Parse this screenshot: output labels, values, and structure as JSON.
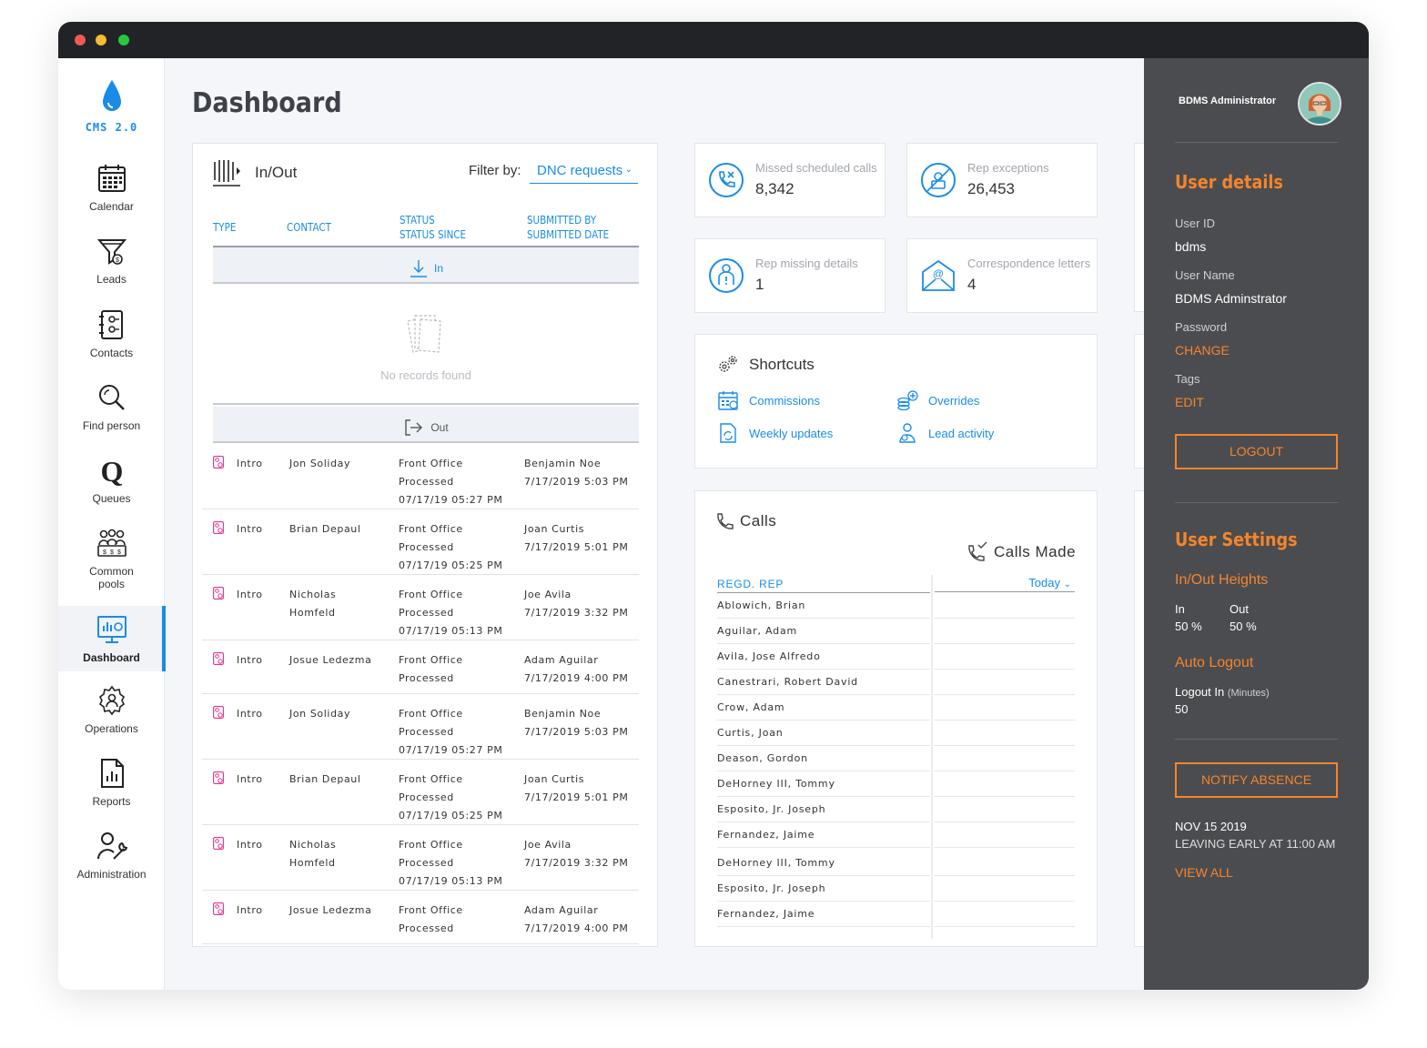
{
  "nav": {
    "logo": "CMS 2.0",
    "items": [
      {
        "label": "Calendar"
      },
      {
        "label": "Leads"
      },
      {
        "label": "Contacts"
      },
      {
        "label": "Find person"
      },
      {
        "label": "Queues"
      },
      {
        "label": "Common pools"
      },
      {
        "label": "Dashboard"
      },
      {
        "label": "Operations"
      },
      {
        "label": "Reports"
      },
      {
        "label": "Administration"
      }
    ]
  },
  "page": {
    "title": "Dashboard"
  },
  "inout": {
    "title": "In/Out",
    "filter_label": "Filter by:",
    "filter_value": "DNC requests",
    "columns": {
      "type": "TYPE",
      "contact": "CONTACT",
      "status": "STATUS",
      "status_since": "STATUS SINCE",
      "submitted_by": "SUBMITTED BY",
      "submitted_date": "SUBMITTED DATE"
    },
    "in_label": "In",
    "out_label": "Out",
    "empty_text": "No records found",
    "rows": [
      {
        "type": "Intro",
        "contact": "Jon Soliday",
        "status": "Front Office",
        "status2": "Processed",
        "since": "07/17/19 05:27 PM",
        "by": "Benjamin Noe",
        "date": "7/17/2019 5:03 PM"
      },
      {
        "type": "Intro",
        "contact": "Brian Depaul",
        "status": "Front Office",
        "status2": "Processed",
        "since": "07/17/19 05:25 PM",
        "by": "Joan Curtis",
        "date": "7/17/2019 5:01 PM"
      },
      {
        "type": "Intro",
        "contact": "Nicholas",
        "contact2": "Homfeld",
        "status": "Front Office",
        "status2": "Processed",
        "since": "07/17/19 05:13 PM",
        "by": "Joe Avila",
        "date": "7/17/2019 3:32 PM"
      },
      {
        "type": "Intro",
        "contact": "Josue Ledezma",
        "status": "Front Office",
        "status2": "Processed",
        "since": "",
        "by": "Adam Aguilar",
        "date": "7/17/2019 4:00 PM"
      },
      {
        "type": "Intro",
        "contact": "Jon Soliday",
        "status": "Front Office",
        "status2": "Processed",
        "since": "07/17/19 05:27 PM",
        "by": "Benjamin Noe",
        "date": "7/17/2019 5:03 PM"
      },
      {
        "type": "Intro",
        "contact": "Brian Depaul",
        "status": "Front Office",
        "status2": "Processed",
        "since": "07/17/19 05:25 PM",
        "by": "Joan Curtis",
        "date": "7/17/2019 5:01 PM"
      },
      {
        "type": "Intro",
        "contact": "Nicholas",
        "contact2": "Homfeld",
        "status": "Front Office",
        "status2": "Processed",
        "since": "07/17/19 05:13 PM",
        "by": "Joe Avila",
        "date": "7/17/2019 3:32 PM"
      },
      {
        "type": "Intro",
        "contact": "Josue Ledezma",
        "status": "Front Office",
        "status2": "Processed",
        "since": "",
        "by": "Adam Aguilar",
        "date": "7/17/2019 4:00 PM"
      }
    ]
  },
  "stats": [
    {
      "label": "Missed scheduled calls",
      "value": "8,342"
    },
    {
      "label": "Rep exceptions",
      "value": "26,453"
    },
    {
      "label": "Rep missing details",
      "value": "1"
    },
    {
      "label": "Correspondence letters",
      "value": "4"
    }
  ],
  "shortcuts": {
    "title": "Shortcuts",
    "items": [
      {
        "label": "Commissions"
      },
      {
        "label": "Overrides"
      },
      {
        "label": "Weekly updates"
      },
      {
        "label": "Lead activity"
      }
    ]
  },
  "calls": {
    "title": "Calls",
    "subtitle": "Calls Made",
    "col_rep": "REGD. REP",
    "col_period": "Today",
    "reps": [
      "Ablowich, Brian",
      "Aguilar, Adam",
      "Avila, Jose Alfredo",
      "Canestrari, Robert David",
      "Crow, Adam",
      "Curtis, Joan",
      "Deason, Gordon",
      "DeHorney III, Tommy",
      "Esposito, Jr. Joseph",
      "Fernandez, Jaime",
      "DeHorney III, Tommy",
      "Esposito, Jr. Joseph",
      "Fernandez, Jaime"
    ]
  },
  "user": {
    "name": "BDMS Administrator",
    "details_title": "User details",
    "user_id_label": "User ID",
    "user_id": "bdms",
    "user_name_label": "User Name",
    "user_name": "BDMS Adminstrator",
    "password_label": "Password",
    "password_action": "CHANGE",
    "tags_label": "Tags",
    "tags_action": "EDIT",
    "logout": "LOGOUT",
    "settings_title": "User Settings",
    "heights_title": "In/Out Heights",
    "in_label": "In",
    "in_value": "50 %",
    "out_label": "Out",
    "out_value": "50 %",
    "auto_logout_title": "Auto Logout",
    "logout_in_label": "Logout In",
    "logout_in_unit": "(Minutes)",
    "logout_in_value": "50",
    "notify_absence": "NOTIFY ABSENCE",
    "absence_date": "NOV 15 2019",
    "absence_text": "LEAVING EARLY AT 11:00 AM",
    "view_all": "VIEW ALL"
  },
  "colors": {
    "accent": "#1a8ce8",
    "orange": "#f5852b",
    "panel": "#4b4c50",
    "badge": "#e0338b"
  }
}
